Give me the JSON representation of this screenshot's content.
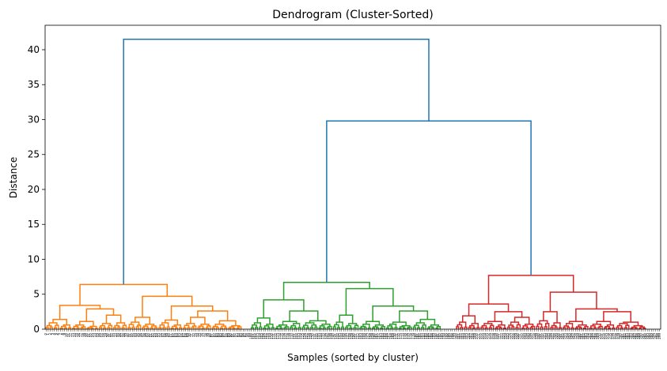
{
  "chart_data": {
    "type": "dendrogram",
    "title": "Dendrogram (Cluster-Sorted)",
    "xlabel": "Samples (sorted by cluster)",
    "ylabel": "Distance",
    "ylim": [
      0,
      43.5
    ],
    "yticks": [
      0,
      5,
      10,
      15,
      20,
      25,
      30,
      35,
      40
    ],
    "n_samples": 300,
    "colors": {
      "above_threshold": "#1f77b4",
      "cluster_1": "#ff7f0e",
      "cluster_2": "#2ca02c",
      "cluster_3": "#d62728"
    },
    "top_merges": [
      {
        "children": [
          "cluster_1",
          "clusters_2_3"
        ],
        "height": 41.5
      },
      {
        "children": [
          "cluster_2",
          "cluster_3"
        ],
        "height": 29.8
      }
    ],
    "clusters": [
      {
        "name": "cluster_1",
        "color_key": "cluster_1",
        "sample_range": [
          0,
          100
        ],
        "root_height": 6.4,
        "tree": {
          "h": 6.4,
          "c": [
            {
              "h": 3.4,
              "c": [
                {
                  "h": 1.4,
                  "c": [
                    {
                      "h": 0.9,
                      "n": 7
                    },
                    {
                      "h": 0.6,
                      "n": 6
                    }
                  ]
                },
                {
                  "h": 2.9,
                  "c": [
                    {
                      "h": 1.1,
                      "c": [
                        {
                          "h": 0.6,
                          "n": 7
                        },
                        {
                          "h": 0.4,
                          "n": 6
                        }
                      ]
                    },
                    {
                      "h": 2.0,
                      "c": [
                        {
                          "h": 0.8,
                          "n": 7
                        },
                        {
                          "h": 0.9,
                          "n": 7
                        }
                      ]
                    }
                  ]
                }
              ]
            },
            {
              "h": 4.7,
              "c": [
                {
                  "h": 1.7,
                  "c": [
                    {
                      "h": 1.0,
                      "n": 7
                    },
                    {
                      "h": 0.7,
                      "n": 8
                    }
                  ]
                },
                {
                  "h": 3.3,
                  "c": [
                    {
                      "h": 1.3,
                      "c": [
                        {
                          "h": 0.9,
                          "n": 6
                        },
                        {
                          "h": 0.6,
                          "n": 6
                        }
                      ]
                    },
                    {
                      "h": 2.6,
                      "c": [
                        {
                          "h": 1.7,
                          "c": [
                            {
                              "h": 0.8,
                              "n": 7
                            },
                            {
                              "h": 0.7,
                              "n": 7
                            }
                          ]
                        },
                        {
                          "h": 1.2,
                          "c": [
                            {
                              "h": 0.7,
                              "n": 8
                            },
                            {
                              "h": 0.5,
                              "n": 7
                            }
                          ]
                        }
                      ]
                    }
                  ]
                }
              ]
            }
          ]
        }
      },
      {
        "name": "cluster_2",
        "color_key": "cluster_2",
        "sample_range": [
          100,
          200
        ],
        "root_height": 6.7,
        "tree": {
          "h": 6.7,
          "c": [
            {
              "h": 4.2,
              "c": [
                {
                  "h": 1.6,
                  "c": [
                    {
                      "h": 0.9,
                      "n": 6
                    },
                    {
                      "h": 0.7,
                      "n": 6
                    }
                  ]
                },
                {
                  "h": 2.6,
                  "c": [
                    {
                      "h": 1.1,
                      "c": [
                        {
                          "h": 0.6,
                          "n": 7
                        },
                        {
                          "h": 0.8,
                          "n": 6
                        }
                      ]
                    },
                    {
                      "h": 1.2,
                      "c": [
                        {
                          "h": 0.9,
                          "n": 8
                        },
                        {
                          "h": 0.7,
                          "n": 7
                        }
                      ]
                    }
                  ]
                }
              ]
            },
            {
              "h": 5.8,
              "c": [
                {
                  "h": 2.0,
                  "c": [
                    {
                      "h": 1.0,
                      "n": 6
                    },
                    {
                      "h": 0.8,
                      "n": 7
                    }
                  ]
                },
                {
                  "h": 3.3,
                  "c": [
                    {
                      "h": 1.1,
                      "c": [
                        {
                          "h": 0.7,
                          "n": 6
                        },
                        {
                          "h": 0.6,
                          "n": 7
                        }
                      ]
                    },
                    {
                      "h": 2.6,
                      "c": [
                        {
                          "h": 1.0,
                          "c": [
                            {
                              "h": 0.7,
                              "n": 6
                            },
                            {
                              "h": 0.5,
                              "n": 7
                            }
                          ]
                        },
                        {
                          "h": 1.4,
                          "c": [
                            {
                              "h": 0.9,
                              "n": 7
                            },
                            {
                              "h": 0.6,
                              "n": 7
                            }
                          ]
                        }
                      ]
                    }
                  ]
                }
              ]
            }
          ]
        }
      },
      {
        "name": "cluster_3",
        "color_key": "cluster_3",
        "sample_range": [
          200,
          300
        ],
        "root_height": 7.7,
        "tree": {
          "h": 7.7,
          "c": [
            {
              "h": 3.6,
              "c": [
                {
                  "h": 1.9,
                  "c": [
                    {
                      "h": 1.0,
                      "n": 6
                    },
                    {
                      "h": 0.8,
                      "n": 6
                    }
                  ]
                },
                {
                  "h": 2.5,
                  "c": [
                    {
                      "h": 1.1,
                      "c": [
                        {
                          "h": 0.8,
                          "n": 7
                        },
                        {
                          "h": 0.6,
                          "n": 6
                        }
                      ]
                    },
                    {
                      "h": 1.7,
                      "c": [
                        {
                          "h": 1.0,
                          "n": 7
                        },
                        {
                          "h": 0.7,
                          "n": 7
                        }
                      ]
                    }
                  ]
                }
              ]
            },
            {
              "h": 5.3,
              "c": [
                {
                  "h": 2.5,
                  "c": [
                    {
                      "h": 1.2,
                      "n": 7
                    },
                    {
                      "h": 0.9,
                      "n": 6
                    }
                  ]
                },
                {
                  "h": 2.9,
                  "c": [
                    {
                      "h": 1.1,
                      "c": [
                        {
                          "h": 0.8,
                          "n": 6
                        },
                        {
                          "h": 0.6,
                          "n": 7
                        }
                      ]
                    },
                    {
                      "h": 2.5,
                      "c": [
                        {
                          "h": 1.1,
                          "c": [
                            {
                              "h": 0.7,
                              "n": 7
                            },
                            {
                              "h": 0.6,
                              "n": 6
                            }
                          ]
                        },
                        {
                          "h": 1.0,
                          "c": [
                            {
                              "h": 0.8,
                              "n": 7
                            },
                            {
                              "h": 0.5,
                              "n": 8
                            }
                          ]
                        }
                      ]
                    }
                  ]
                }
              ]
            }
          ]
        }
      }
    ]
  }
}
